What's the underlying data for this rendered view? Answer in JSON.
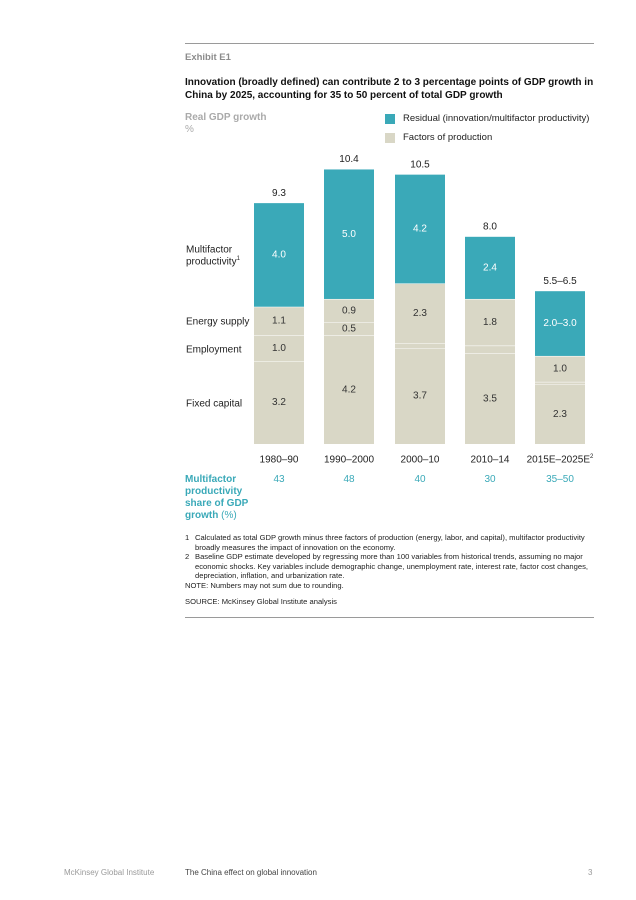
{
  "exhibit_label": "Exhibit E1",
  "title": "Innovation (broadly defined) can contribute 2 to 3 percentage points of GDP growth in China by 2025, accounting for 35 to 50 percent of total GDP growth",
  "colors": {
    "residual": "#3aa9b8",
    "factors": "#d9d7c6",
    "teal_text": "#3aa9b8"
  },
  "chart_data": {
    "type": "bar",
    "stacked": true,
    "ylabel": "Real GDP growth",
    "yunit": "%",
    "categories": [
      "1980–90",
      "1990–2000",
      "2000–10",
      "2010–14",
      "2015E–2025E"
    ],
    "category_superscripts": [
      "",
      "",
      "",
      "",
      "2"
    ],
    "legend": [
      {
        "name": "Residual (innovation/multifactor productivity)",
        "color": "#3aa9b8"
      },
      {
        "name": "Factors of production",
        "color": "#d9d7c6"
      }
    ],
    "row_labels": {
      "multifactor": "Multifactor productivity",
      "multifactor_sup": "1",
      "energy": "Energy supply",
      "employment": "Employment",
      "capital": "Fixed capital"
    },
    "bars": [
      {
        "total": 9.3,
        "total_label": "9.3",
        "fixed_capital": 3.2,
        "employment": 1.0,
        "energy_supply": 1.1,
        "multifactor": 4.0,
        "labels": {
          "fixed_capital": "3.2",
          "employment": "1.0",
          "energy_supply": "1.1",
          "multifactor": "4.0"
        }
      },
      {
        "total": 10.4,
        "total_label": "10.4",
        "fixed_capital": 4.2,
        "employment": 0.5,
        "energy_supply": 0.9,
        "multifactor": 5.0,
        "labels": {
          "fixed_capital": "4.2",
          "employment": "0.5",
          "energy_supply": "0.9",
          "multifactor": "5.0"
        }
      },
      {
        "total": 10.5,
        "total_label": "10.5",
        "fixed_capital": 3.7,
        "employment": 0.2,
        "energy_supply": 2.3,
        "multifactor": 4.2,
        "labels": {
          "fixed_capital": "3.7",
          "employment": "0.2",
          "energy_supply": "2.3",
          "multifactor": "4.2"
        }
      },
      {
        "total": 8.0,
        "total_label": "8.0",
        "fixed_capital": 3.5,
        "employment": 0.3,
        "energy_supply": 1.8,
        "multifactor": 2.4,
        "labels": {
          "fixed_capital": "3.5",
          "employment": "0.3",
          "energy_supply": "1.8",
          "multifactor": "2.4"
        }
      },
      {
        "total": 6.0,
        "total_label": "5.5–6.5",
        "fixed_capital": 2.3,
        "employment": 0.1,
        "energy_supply": 1.0,
        "multifactor": 2.5,
        "labels": {
          "fixed_capital": "2.3",
          "employment": "0.1",
          "energy_supply": "1.0",
          "multifactor": "2.0–3.0"
        }
      }
    ],
    "multifactor_share": {
      "label": "Multifactor productivity share of GDP growth",
      "unit": "(%)",
      "values": [
        "43",
        "48",
        "40",
        "30",
        "35–50"
      ]
    },
    "ylim": [
      0,
      11
    ]
  },
  "notes": [
    {
      "num": "1",
      "text": "Calculated as total GDP growth minus three factors of production (energy, labor, and capital), multifactor productivity broadly measures the impact of innovation on the economy."
    },
    {
      "num": "2",
      "text": "Baseline GDP estimate developed by regressing more than 100 variables from historical trends, assuming no major economic shocks. Key variables include demographic change, unemployment rate, interest rate, factor cost changes, depreciation, inflation, and urbanization rate."
    },
    {
      "num": "NOTE:",
      "text": "Numbers may not sum due to rounding."
    }
  ],
  "source": "SOURCE: McKinsey Global Institute analysis",
  "footer": {
    "publisher": "McKinsey Global Institute",
    "report": "The China effect on global innovation",
    "page": "3"
  }
}
